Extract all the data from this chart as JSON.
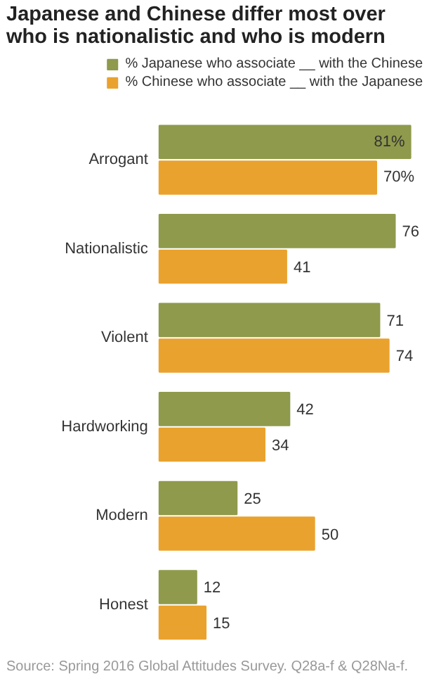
{
  "chart_data": {
    "type": "bar",
    "orientation": "horizontal",
    "title": "Japanese and Chinese differ most over who is nationalistic and who is modern",
    "categories": [
      "Arrogant",
      "Nationalistic",
      "Violent",
      "Hardworking",
      "Modern",
      "Honest"
    ],
    "series": [
      {
        "name": "% Japanese who associate __ with the Chinese",
        "color": "#8f9a4c",
        "values": [
          81,
          76,
          71,
          42,
          25,
          12
        ],
        "value_labels": [
          "81%",
          "76",
          "71",
          "42",
          "25",
          "12"
        ]
      },
      {
        "name": "% Chinese who associate __ with the Japanese",
        "color": "#eaa22e",
        "values": [
          70,
          41,
          74,
          34,
          50,
          15
        ],
        "value_labels": [
          "70%",
          "41",
          "74",
          "34",
          "50",
          "15"
        ]
      }
    ],
    "legend": "top",
    "annotations": [
      "Source: Spring 2016 Global Attitudes Survey. Q28a-f & Q28Na-f."
    ]
  }
}
